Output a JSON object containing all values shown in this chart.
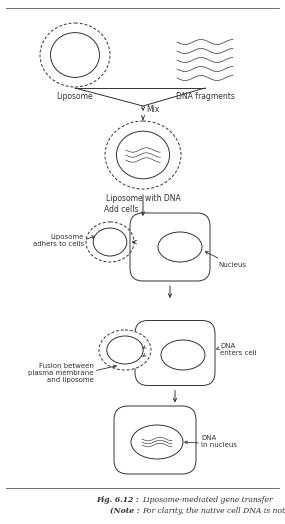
{
  "bg_color": "#ffffff",
  "line_color": "#333333",
  "fig_width": 2.85,
  "fig_height": 5.24,
  "dpi": 100,
  "labels": {
    "liposome": "Liposome",
    "dna_fragments": "DNA fragments",
    "mix": "Mix",
    "liposome_dna": "Liposome with DNA",
    "add_cells": "Add cells",
    "adheres": "Liposome\nadhers to cells",
    "nucleus": "Nucleus",
    "fusion": "Fusion between\nplasma membrane\nand liposome",
    "dna_enters": "DNA\nenters cell",
    "dna_nucleus": "DNA\nin nucleus"
  },
  "caption_fig_bold": "Fig. 6.12 : ",
  "caption_fig_normal": "Liposome-mediated gene transfer",
  "caption_note_bold": "(Note : ",
  "caption_note_normal": "For clarity, the native cell DNA is not shown).",
  "font_size_label": 5.5,
  "font_size_caption": 5.5
}
